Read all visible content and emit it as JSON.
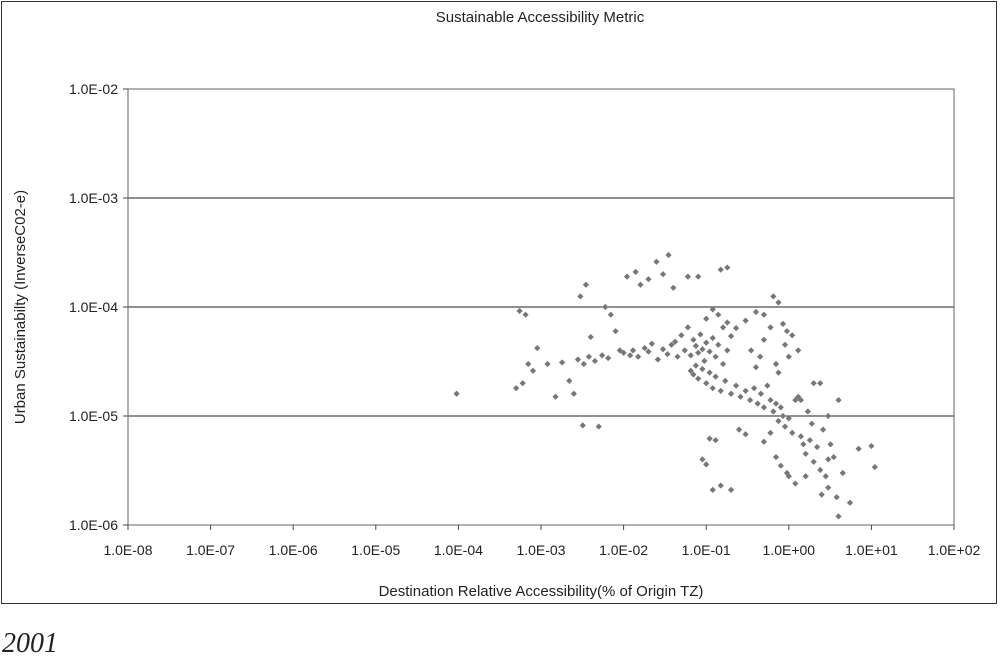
{
  "caption": "2001",
  "chart_data": {
    "type": "scatter",
    "title": "Sustainable Accessibility Metric",
    "xlabel": "Destination Relative Accessibility(% of Origin TZ)",
    "ylabel": "Urban Sustainabilty (InverseC02-e)",
    "xscale": "log",
    "yscale": "log",
    "xlim": [
      1e-08,
      100
    ],
    "ylim": [
      1e-06,
      0.01
    ],
    "x_ticks": [
      "1.0E-08",
      "1.0E-07",
      "1.0E-06",
      "1.0E-05",
      "1.0E-04",
      "1.0E-03",
      "1.0E-02",
      "1.0E-01",
      "1.0E+00",
      "1.0E+01",
      "1.0E+02"
    ],
    "y_ticks": [
      "1.0E-02",
      "1.0E-03",
      "1.0E-04",
      "1.0E-05",
      "1.0E-06"
    ],
    "grid": "horizontal major",
    "legend": "none",
    "marker_color": "#777777",
    "series": [
      {
        "points": [
          [
            9.5e-05,
            1.6e-05
          ],
          [
            0.00055,
            9.2e-05
          ],
          [
            0.00065,
            8.5e-05
          ],
          [
            0.0005,
            1.8e-05
          ],
          [
            0.0006,
            2e-05
          ],
          [
            0.0007,
            3e-05
          ],
          [
            0.0008,
            2.6e-05
          ],
          [
            0.0009,
            4.2e-05
          ],
          [
            0.0012,
            3e-05
          ],
          [
            0.0015,
            1.5e-05
          ],
          [
            0.0018,
            3.1e-05
          ],
          [
            0.0022,
            2.1e-05
          ],
          [
            0.0025,
            1.6e-05
          ],
          [
            0.003,
            0.000125
          ],
          [
            0.0035,
            0.00016
          ],
          [
            0.004,
            5.3e-05
          ],
          [
            0.0032,
            8.2e-06
          ],
          [
            0.005,
            8e-06
          ],
          [
            0.0028,
            3.3e-05
          ],
          [
            0.0033,
            3e-05
          ],
          [
            0.0038,
            3.5e-05
          ],
          [
            0.0045,
            3.2e-05
          ],
          [
            0.0055,
            3.6e-05
          ],
          [
            0.0065,
            3.4e-05
          ],
          [
            0.006,
            0.0001
          ],
          [
            0.007,
            8.5e-05
          ],
          [
            0.008,
            6e-05
          ],
          [
            0.009,
            4e-05
          ],
          [
            0.01,
            3.8e-05
          ],
          [
            0.012,
            3.6e-05
          ],
          [
            0.011,
            0.00019
          ],
          [
            0.014,
            0.00021
          ],
          [
            0.016,
            0.00016
          ],
          [
            0.02,
            0.00018
          ],
          [
            0.025,
            0.00026
          ],
          [
            0.03,
            0.0002
          ],
          [
            0.035,
            0.0003
          ],
          [
            0.04,
            0.00015
          ],
          [
            0.06,
            0.00019
          ],
          [
            0.08,
            0.00019
          ],
          [
            0.15,
            0.00022
          ],
          [
            0.18,
            0.00023
          ],
          [
            0.013,
            4e-05
          ],
          [
            0.015,
            3.5e-05
          ],
          [
            0.018,
            4.2e-05
          ],
          [
            0.02,
            3.9e-05
          ],
          [
            0.022,
            4.6e-05
          ],
          [
            0.026,
            3.3e-05
          ],
          [
            0.03,
            4.1e-05
          ],
          [
            0.034,
            3.7e-05
          ],
          [
            0.038,
            4.5e-05
          ],
          [
            0.042,
            4.8e-05
          ],
          [
            0.045,
            3.5e-05
          ],
          [
            0.05,
            5.5e-05
          ],
          [
            0.055,
            4e-05
          ],
          [
            0.06,
            6.5e-05
          ],
          [
            0.065,
            3.6e-05
          ],
          [
            0.07,
            5e-05
          ],
          [
            0.075,
            4.4e-05
          ],
          [
            0.08,
            3.8e-05
          ],
          [
            0.085,
            5.6e-05
          ],
          [
            0.09,
            4.1e-05
          ],
          [
            0.095,
            3.2e-05
          ],
          [
            0.1,
            4.7e-05
          ],
          [
            0.11,
            3.9e-05
          ],
          [
            0.12,
            5.2e-05
          ],
          [
            0.13,
            3.5e-05
          ],
          [
            0.14,
            4.5e-05
          ],
          [
            0.16,
            3e-05
          ],
          [
            0.18,
            4e-05
          ],
          [
            0.2,
            5.4e-05
          ],
          [
            0.23,
            6.4e-05
          ],
          [
            0.065,
            2.6e-05
          ],
          [
            0.07,
            2.4e-05
          ],
          [
            0.075,
            2.9e-05
          ],
          [
            0.08,
            2.2e-05
          ],
          [
            0.09,
            2.7e-05
          ],
          [
            0.1,
            2e-05
          ],
          [
            0.11,
            2.5e-05
          ],
          [
            0.12,
            1.8e-05
          ],
          [
            0.13,
            2.3e-05
          ],
          [
            0.15,
            1.7e-05
          ],
          [
            0.17,
            2.1e-05
          ],
          [
            0.2,
            1.6e-05
          ],
          [
            0.23,
            1.9e-05
          ],
          [
            0.26,
            1.5e-05
          ],
          [
            0.3,
            1.7e-05
          ],
          [
            0.34,
            1.4e-05
          ],
          [
            0.38,
            1.8e-05
          ],
          [
            0.42,
            1.3e-05
          ],
          [
            0.46,
            1.6e-05
          ],
          [
            0.5,
            1.2e-05
          ],
          [
            0.55,
            1.9e-05
          ],
          [
            0.6,
            1.4e-05
          ],
          [
            0.65,
            1.1e-05
          ],
          [
            0.7,
            1.3e-05
          ],
          [
            0.75,
            9e-06
          ],
          [
            0.8,
            1.2e-05
          ],
          [
            0.85,
            1e-05
          ],
          [
            0.9,
            8e-06
          ],
          [
            1.0,
            9.5e-06
          ],
          [
            1.1,
            7e-06
          ],
          [
            1.2,
            1.4e-05
          ],
          [
            1.4,
            6.5e-06
          ],
          [
            1.5,
            5.5e-06
          ],
          [
            1.6,
            4.5e-06
          ],
          [
            1.8,
            6e-06
          ],
          [
            2.0,
            3.8e-06
          ],
          [
            2.2,
            5.2e-06
          ],
          [
            2.4,
            3.2e-06
          ],
          [
            2.6,
            7.5e-06
          ],
          [
            2.8,
            2.8e-06
          ],
          [
            3.0,
            2.2e-06
          ],
          [
            3.2,
            5.5e-06
          ],
          [
            3.5,
            4.2e-06
          ],
          [
            3.8,
            1.8e-06
          ],
          [
            4.0,
            1.2e-06
          ],
          [
            4.5,
            3e-06
          ],
          [
            5.5,
            1.6e-06
          ],
          [
            7.0,
            5e-06
          ],
          [
            10.0,
            5.3e-06
          ],
          [
            11.0,
            3.4e-06
          ],
          [
            0.09,
            4e-06
          ],
          [
            0.1,
            3.6e-06
          ],
          [
            0.12,
            2.1e-06
          ],
          [
            0.15,
            2.3e-06
          ],
          [
            0.2,
            2.1e-06
          ],
          [
            0.11,
            6.2e-06
          ],
          [
            0.13,
            6e-06
          ],
          [
            0.25,
            7.5e-06
          ],
          [
            0.3,
            6.8e-06
          ],
          [
            0.5,
            5.8e-06
          ],
          [
            0.6,
            7e-06
          ],
          [
            0.7,
            4.2e-06
          ],
          [
            0.8,
            3.5e-06
          ],
          [
            0.95,
            3e-06
          ],
          [
            1.2,
            2.4e-06
          ],
          [
            1.6,
            2.8e-06
          ],
          [
            2.5,
            1.9e-06
          ],
          [
            3.0,
            4e-06
          ],
          [
            0.65,
            0.000125
          ],
          [
            0.75,
            0.00011
          ],
          [
            0.5,
            8.5e-05
          ],
          [
            0.4,
            9e-05
          ],
          [
            0.3,
            7.5e-05
          ],
          [
            0.85,
            7e-05
          ],
          [
            0.95,
            6e-05
          ],
          [
            1.1,
            5.5e-05
          ],
          [
            1.3,
            4e-05
          ],
          [
            1.0,
            3.5e-05
          ],
          [
            0.9,
            4.5e-05
          ],
          [
            0.6,
            6.5e-05
          ],
          [
            0.5,
            5e-05
          ],
          [
            0.45,
            3.5e-05
          ],
          [
            0.4,
            2.8e-05
          ],
          [
            0.35,
            4e-05
          ],
          [
            0.7,
            3e-05
          ],
          [
            0.12,
            9.5e-05
          ],
          [
            0.14,
            8.5e-05
          ],
          [
            0.16,
            6.5e-05
          ],
          [
            0.18,
            7.2e-05
          ],
          [
            0.1,
            7.8e-05
          ],
          [
            1.0,
            2.8e-06
          ],
          [
            0.75,
            2.5e-05
          ],
          [
            1.3,
            1.5e-05
          ],
          [
            1.4,
            1.4e-05
          ],
          [
            2.0,
            2e-05
          ],
          [
            2.4,
            2e-05
          ],
          [
            1.7,
            1.1e-05
          ],
          [
            1.9,
            8.5e-06
          ],
          [
            4.0,
            1.4e-05
          ],
          [
            3.0,
            1e-05
          ]
        ]
      }
    ]
  }
}
